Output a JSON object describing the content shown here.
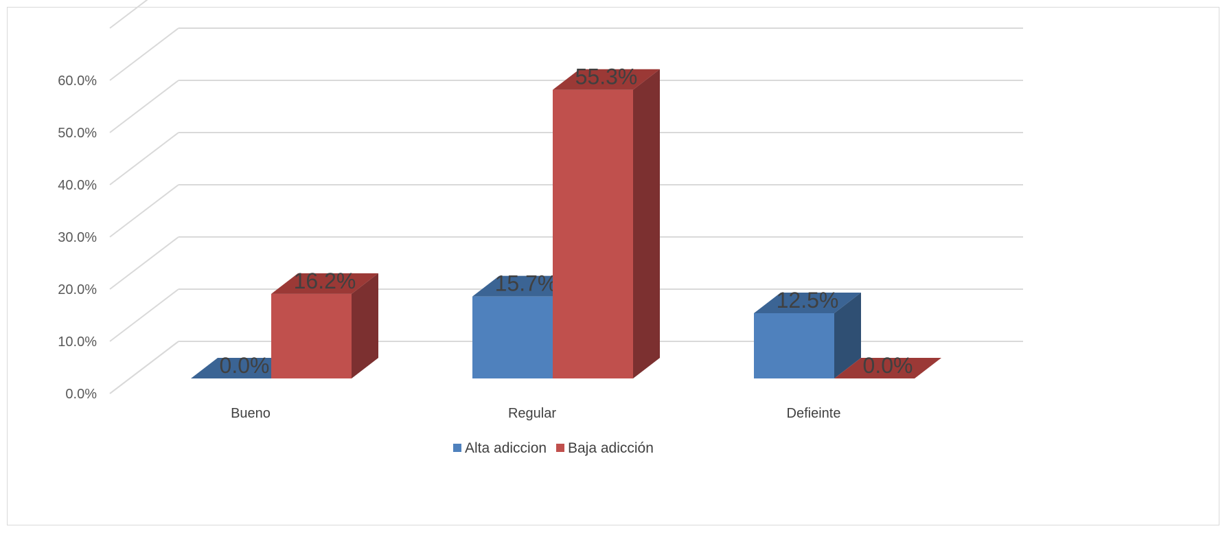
{
  "chart_data": {
    "type": "bar",
    "style": "3d-clustered-column",
    "categories": [
      "Bueno",
      "Regular",
      "Defieinte"
    ],
    "series": [
      {
        "name": "Alta adiccion",
        "values": [
          0.0,
          15.7,
          12.5
        ],
        "labels": [
          "0.0%",
          "15.7%",
          "12.5%"
        ],
        "color": "#4f81bd",
        "side_color": "#2f4f73",
        "top_color": "#3b6494"
      },
      {
        "name": "Baja adicción",
        "values": [
          16.2,
          55.3,
          0.0
        ],
        "labels": [
          "16.2%",
          "55.3%",
          "0.0%"
        ],
        "color": "#c0504d",
        "side_color": "#7c3030",
        "top_color": "#9b3936"
      }
    ],
    "yticks": [
      "0.0%",
      "10.0%",
      "20.0%",
      "30.0%",
      "40.0%",
      "50.0%",
      "60.0%"
    ],
    "ylim": [
      0,
      70
    ],
    "grid": true,
    "legend": "bottom",
    "gridline_color": "#d9d9d9"
  }
}
